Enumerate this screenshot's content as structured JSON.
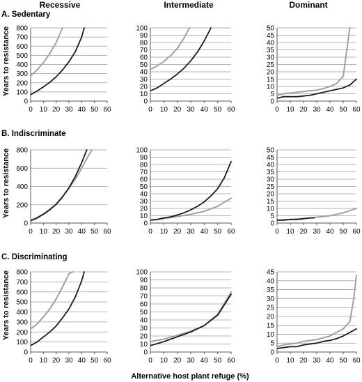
{
  "figure": {
    "columns": [
      "Recessive",
      "Intermediate",
      "Dominant"
    ],
    "rows": [
      "A.  Sedentary",
      "B.  Indiscriminate",
      "C.  Discriminating"
    ],
    "ylabel": "Years to resistance",
    "xlabel": "Alternative host plant refuge (%)",
    "colors": {
      "black": "#1a1a1a",
      "gray": "#a0a0a0"
    }
  },
  "chart_data": [
    {
      "type": "line",
      "row": "A.  Sedentary",
      "column": "Recessive",
      "xticks": [
        0,
        10,
        20,
        30,
        40,
        50,
        60
      ],
      "yticks": [
        0,
        100,
        200,
        300,
        400,
        500,
        600,
        700,
        800
      ],
      "xlim": [
        0,
        60
      ],
      "ylim": [
        0,
        800
      ],
      "grid": true,
      "series": [
        {
          "color": "gray",
          "x": [
            0,
            5,
            10,
            15,
            20,
            25
          ],
          "y": [
            275,
            340,
            420,
            520,
            640,
            800
          ]
        },
        {
          "color": "black",
          "x": [
            0,
            5,
            10,
            15,
            20,
            25,
            30,
            35,
            40,
            42
          ],
          "y": [
            70,
            110,
            155,
            205,
            265,
            340,
            430,
            540,
            700,
            800
          ]
        }
      ]
    },
    {
      "type": "line",
      "row": "A.  Sedentary",
      "column": "Intermediate",
      "xticks": [
        0,
        10,
        20,
        30,
        40,
        50,
        60
      ],
      "yticks": [
        0,
        10,
        20,
        30,
        40,
        50,
        60,
        70,
        80,
        90,
        100
      ],
      "xlim": [
        0,
        60
      ],
      "ylim": [
        0,
        100
      ],
      "grid": true,
      "series": [
        {
          "color": "gray",
          "x": [
            0,
            5,
            10,
            15,
            20,
            25,
            29
          ],
          "y": [
            43,
            48,
            54,
            62,
            72,
            86,
            100
          ]
        },
        {
          "color": "black",
          "x": [
            0,
            5,
            10,
            15,
            20,
            25,
            30,
            35,
            40,
            45
          ],
          "y": [
            14,
            18,
            24,
            30,
            37,
            45,
            55,
            67,
            82,
            100
          ]
        }
      ]
    },
    {
      "type": "line",
      "row": "A.  Sedentary",
      "column": "Dominant",
      "xticks": [
        0,
        10,
        20,
        30,
        40,
        50,
        60
      ],
      "yticks": [
        0,
        5,
        10,
        15,
        20,
        25,
        30,
        35,
        40,
        45,
        50
      ],
      "xlim": [
        0,
        60
      ],
      "ylim": [
        0,
        50
      ],
      "grid": true,
      "series": [
        {
          "color": "gray",
          "x": [
            0,
            5,
            10,
            15,
            20,
            25,
            30,
            35,
            40,
            45,
            50,
            52,
            55
          ],
          "y": [
            4,
            5,
            5.5,
            6,
            6.5,
            7,
            7.5,
            8.5,
            10,
            12,
            17,
            30,
            50
          ]
        },
        {
          "color": "black",
          "x": [
            0,
            5,
            10,
            15,
            20,
            25,
            30,
            35,
            40,
            45,
            50,
            55,
            60
          ],
          "y": [
            2,
            3,
            3,
            3,
            3.5,
            4,
            5,
            6,
            7,
            8,
            9,
            11,
            15
          ]
        }
      ]
    },
    {
      "type": "line",
      "row": "B.  Indiscriminate",
      "column": "Recessive",
      "xticks": [
        0,
        10,
        20,
        30,
        40,
        50,
        60
      ],
      "yticks": [
        0,
        200,
        400,
        600,
        800
      ],
      "xlim": [
        0,
        60
      ],
      "ylim": [
        0,
        800
      ],
      "grid": true,
      "series": [
        {
          "color": "gray",
          "x": [
            0,
            5,
            10,
            15,
            20,
            25,
            30,
            35,
            40,
            45,
            48
          ],
          "y": [
            30,
            60,
            100,
            150,
            210,
            290,
            380,
            480,
            600,
            730,
            800
          ]
        },
        {
          "color": "black",
          "x": [
            0,
            5,
            10,
            15,
            20,
            25,
            30,
            35,
            40,
            44
          ],
          "y": [
            25,
            55,
            95,
            145,
            205,
            285,
            385,
            510,
            660,
            800
          ]
        }
      ]
    },
    {
      "type": "line",
      "row": "B.  Indiscriminate",
      "column": "Intermediate",
      "xticks": [
        0,
        10,
        20,
        30,
        40,
        50,
        60
      ],
      "yticks": [
        0,
        10,
        20,
        30,
        40,
        50,
        60,
        70,
        80,
        90,
        100
      ],
      "xlim": [
        0,
        60
      ],
      "ylim": [
        0,
        100
      ],
      "grid": true,
      "series": [
        {
          "color": "gray",
          "x": [
            0,
            10,
            20,
            30,
            40,
            50,
            60
          ],
          "y": [
            4,
            6,
            9,
            12,
            16,
            23,
            34
          ]
        },
        {
          "color": "black",
          "x": [
            0,
            5,
            10,
            15,
            20,
            25,
            30,
            35,
            40,
            45,
            50,
            55,
            60
          ],
          "y": [
            4,
            5,
            7,
            8.5,
            11,
            14,
            18,
            23,
            29,
            37,
            47,
            62,
            84
          ]
        }
      ]
    },
    {
      "type": "line",
      "row": "B.  Indiscriminate",
      "column": "Dominant",
      "xticks": [
        0,
        10,
        20,
        30,
        40,
        50,
        60
      ],
      "yticks": [
        0,
        5,
        10,
        15,
        20,
        25,
        30,
        35,
        40,
        45,
        50
      ],
      "xlim": [
        0,
        60
      ],
      "ylim": [
        0,
        50
      ],
      "grid": true,
      "series": [
        {
          "color": "gray",
          "x": [
            0,
            10,
            20,
            30,
            40,
            50,
            60
          ],
          "y": [
            2,
            2.5,
            3,
            4,
            5,
            7,
            10
          ]
        },
        {
          "color": "black",
          "x": [
            0,
            5,
            10,
            15,
            20,
            25,
            28
          ],
          "y": [
            2,
            2,
            2.5,
            2.5,
            3,
            3.5,
            3.5
          ]
        }
      ]
    },
    {
      "type": "line",
      "row": "C.  Discriminating",
      "column": "Recessive",
      "xticks": [
        0,
        10,
        20,
        30,
        40,
        50,
        60
      ],
      "yticks": [
        0,
        100,
        200,
        300,
        400,
        500,
        600,
        700,
        800
      ],
      "xlim": [
        0,
        60
      ],
      "ylim": [
        0,
        800
      ],
      "grid": true,
      "series": [
        {
          "color": "gray",
          "x": [
            0,
            5,
            10,
            15,
            20,
            25,
            30,
            33
          ],
          "y": [
            230,
            280,
            350,
            430,
            530,
            650,
            780,
            800
          ]
        },
        {
          "color": "black",
          "x": [
            0,
            5,
            10,
            15,
            20,
            25,
            30,
            35,
            40,
            42
          ],
          "y": [
            65,
            100,
            150,
            200,
            260,
            340,
            430,
            550,
            710,
            800
          ]
        }
      ]
    },
    {
      "type": "line",
      "row": "C.  Discriminating",
      "column": "Intermediate",
      "xticks": [
        0,
        10,
        20,
        30,
        40,
        50,
        60
      ],
      "yticks": [
        0,
        10,
        20,
        30,
        40,
        50,
        60,
        70,
        80,
        90,
        100
      ],
      "xlim": [
        0,
        60
      ],
      "ylim": [
        0,
        100
      ],
      "grid": true,
      "series": [
        {
          "color": "gray",
          "x": [
            0,
            10,
            20,
            30,
            40,
            50,
            60
          ],
          "y": [
            13,
            16,
            21,
            26,
            33,
            47,
            75
          ]
        },
        {
          "color": "black",
          "x": [
            0,
            10,
            20,
            30,
            40,
            50,
            60
          ],
          "y": [
            8,
            13,
            19,
            25,
            33,
            46,
            72
          ]
        }
      ]
    },
    {
      "type": "line",
      "row": "C.  Discriminating",
      "column": "Dominant",
      "xticks": [
        0,
        10,
        20,
        30,
        40,
        50,
        60
      ],
      "yticks": [
        0,
        5,
        10,
        15,
        20,
        25,
        30,
        35,
        40,
        45
      ],
      "xlim": [
        0,
        60
      ],
      "ylim": [
        0,
        45
      ],
      "grid": true,
      "series": [
        {
          "color": "gray",
          "x": [
            0,
            5,
            10,
            15,
            20,
            25,
            30,
            35,
            40,
            45,
            50,
            55,
            58,
            60
          ],
          "y": [
            3,
            4,
            4.5,
            5,
            6,
            6.5,
            7,
            8,
            9,
            11,
            13,
            17,
            30,
            43
          ]
        },
        {
          "color": "black",
          "x": [
            0,
            5,
            10,
            15,
            20,
            25,
            30,
            35,
            40,
            45,
            50,
            55,
            60
          ],
          "y": [
            2,
            2.5,
            3,
            3,
            4,
            4.5,
            5,
            6,
            6.5,
            7.5,
            9,
            11,
            13
          ]
        }
      ]
    }
  ]
}
